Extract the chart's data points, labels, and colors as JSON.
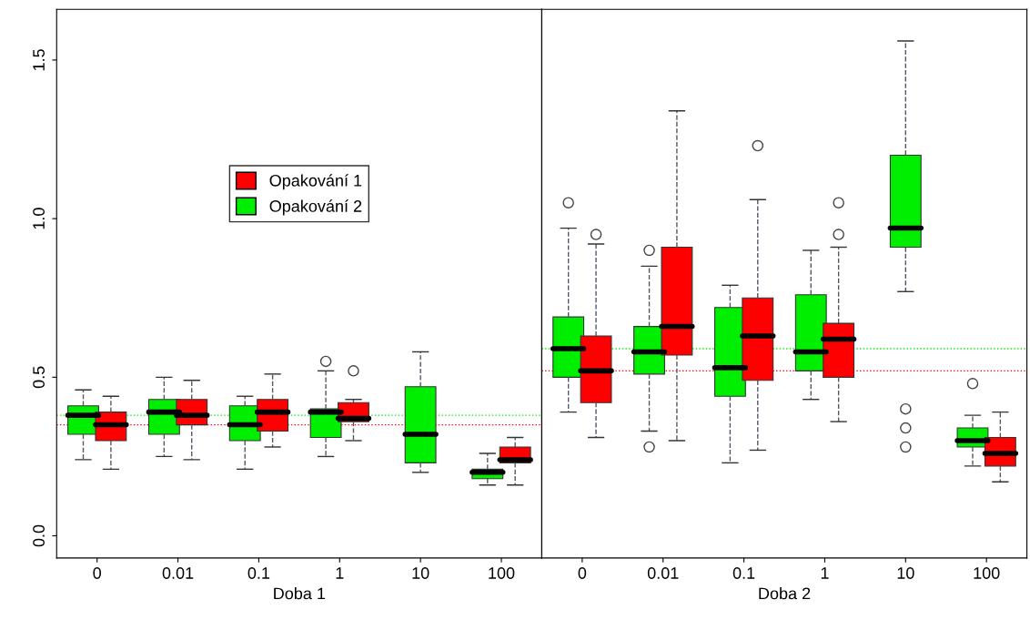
{
  "chart_data": [
    {
      "type": "box",
      "xlabel": "Doba 1",
      "categories": [
        "0",
        "0.01",
        "0.1",
        "1",
        "10",
        "100"
      ],
      "ylim": [
        -0.07,
        1.66
      ],
      "yticks": [
        {
          "value": 0,
          "label": "0.0"
        },
        {
          "value": 0.5,
          "label": "0.5"
        },
        {
          "value": 1.0,
          "label": "1.0"
        },
        {
          "value": 1.5,
          "label": "1.5"
        }
      ],
      "legend": "top",
      "grid": false,
      "ref_lines": [
        {
          "axis": "y",
          "value": 0.38,
          "color": "#00ee00",
          "line_style": "dotted"
        },
        {
          "axis": "y",
          "value": 0.35,
          "color": "#ff0000",
          "line_style": "dotted"
        }
      ],
      "series": [
        {
          "name": "Opakování 2",
          "color": "#00ee00",
          "boxes": [
            {
              "low": 0.24,
              "q1": 0.32,
              "median": 0.38,
              "q3": 0.41,
              "high": 0.46
            },
            {
              "low": 0.25,
              "q1": 0.32,
              "median": 0.39,
              "q3": 0.43,
              "high": 0.5
            },
            {
              "low": 0.21,
              "q1": 0.3,
              "median": 0.35,
              "q3": 0.41,
              "high": 0.44
            },
            {
              "low": 0.25,
              "q1": 0.31,
              "median": 0.39,
              "q3": 0.4,
              "high": 0.52,
              "outliers": [
                0.55
              ]
            },
            {
              "low": 0.2,
              "q1": 0.23,
              "median": 0.32,
              "q3": 0.47,
              "high": 0.58
            },
            {
              "low": 0.16,
              "q1": 0.18,
              "median": 0.2,
              "q3": 0.21,
              "high": 0.26
            }
          ]
        },
        {
          "name": "Opakování 1",
          "color": "#ff0000",
          "boxes": [
            {
              "low": 0.21,
              "q1": 0.3,
              "median": 0.35,
              "q3": 0.39,
              "high": 0.44
            },
            {
              "low": 0.24,
              "q1": 0.35,
              "median": 0.38,
              "q3": 0.43,
              "high": 0.49
            },
            {
              "low": 0.28,
              "q1": 0.33,
              "median": 0.39,
              "q3": 0.43,
              "high": 0.51
            },
            {
              "low": 0.3,
              "q1": 0.36,
              "median": 0.37,
              "q3": 0.42,
              "high": 0.43,
              "outliers": [
                0.52
              ]
            },
            null,
            {
              "low": 0.16,
              "q1": 0.23,
              "median": 0.24,
              "q3": 0.28,
              "high": 0.31
            }
          ]
        }
      ]
    },
    {
      "type": "box",
      "xlabel": "Doba 2",
      "categories": [
        "0",
        "0.01",
        "0.1",
        "1",
        "10",
        "100"
      ],
      "ylim": [
        -0.07,
        1.66
      ],
      "tick_labels": "x",
      "grid": false,
      "ref_lines": [
        {
          "axis": "y",
          "value": 0.59,
          "color": "#00ee00",
          "line_style": "dotted"
        },
        {
          "axis": "y",
          "value": 0.52,
          "color": "#ff0000",
          "line_style": "dotted"
        }
      ],
      "series": [
        {
          "color": "#00ee00",
          "boxes": [
            {
              "low": 0.39,
              "q1": 0.5,
              "median": 0.59,
              "q3": 0.69,
              "high": 0.97,
              "outliers": [
                1.05
              ]
            },
            {
              "low": 0.33,
              "q1": 0.51,
              "median": 0.58,
              "q3": 0.66,
              "high": 0.85,
              "outliers": [
                0.9,
                0.28
              ]
            },
            {
              "low": 0.23,
              "q1": 0.44,
              "median": 0.53,
              "q3": 0.72,
              "high": 0.79
            },
            {
              "low": 0.43,
              "q1": 0.52,
              "median": 0.58,
              "q3": 0.76,
              "high": 0.9
            },
            {
              "low": 0.77,
              "q1": 0.91,
              "median": 0.97,
              "q3": 1.2,
              "high": 1.56,
              "outliers": [
                0.4,
                0.34,
                0.28
              ]
            },
            {
              "low": 0.22,
              "q1": 0.28,
              "median": 0.3,
              "q3": 0.34,
              "high": 0.38,
              "outliers": [
                0.48
              ]
            }
          ]
        },
        {
          "color": "#ff0000",
          "boxes": [
            {
              "low": 0.31,
              "q1": 0.42,
              "median": 0.52,
              "q3": 0.63,
              "high": 0.92,
              "outliers": [
                0.95
              ]
            },
            {
              "low": 0.3,
              "q1": 0.57,
              "median": 0.66,
              "q3": 0.91,
              "high": 1.34
            },
            {
              "low": 0.27,
              "q1": 0.49,
              "median": 0.63,
              "q3": 0.75,
              "high": 1.06,
              "outliers": [
                1.23
              ]
            },
            {
              "low": 0.36,
              "q1": 0.5,
              "median": 0.62,
              "q3": 0.67,
              "high": 0.91,
              "outliers": [
                0.95,
                1.05
              ]
            },
            null,
            {
              "low": 0.17,
              "q1": 0.22,
              "median": 0.26,
              "q3": 0.31,
              "high": 0.39
            }
          ]
        }
      ]
    }
  ]
}
